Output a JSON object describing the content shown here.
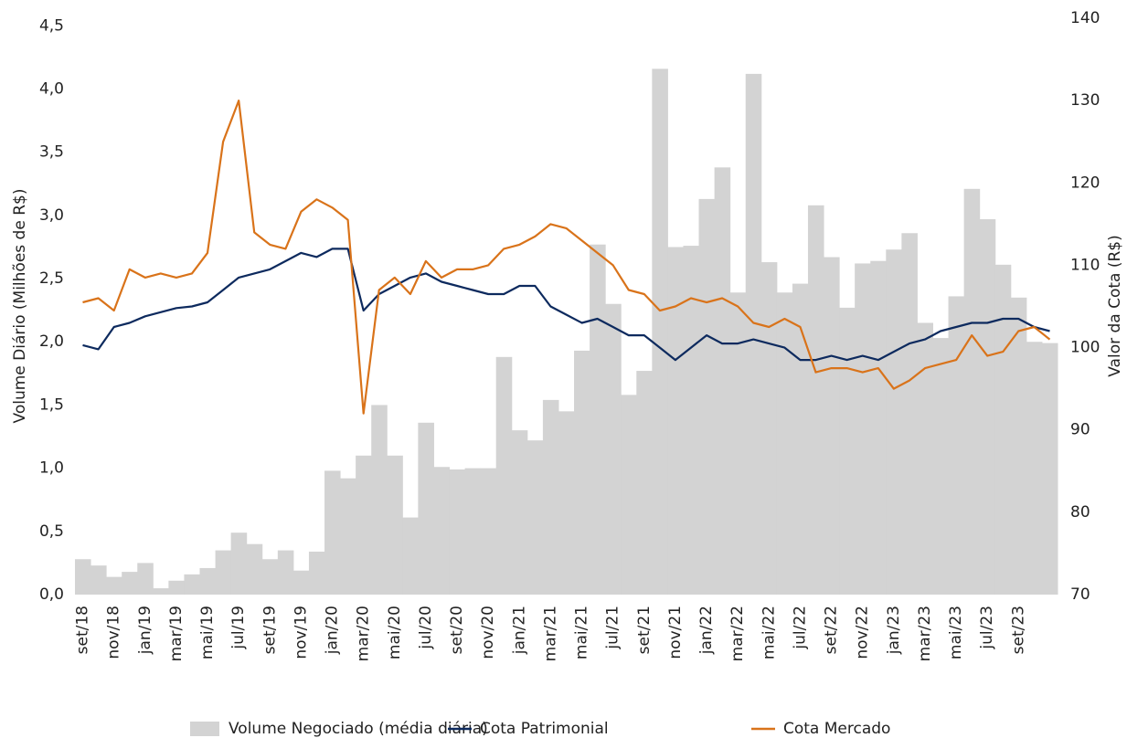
{
  "chart_data": {
    "type": "bar-line",
    "y_label": "Volume Diário (Milhões de R$)",
    "y2_label": "Valor da Cota (R$)",
    "categories": [
      "set/18",
      null,
      "nov/18",
      null,
      "jan/19",
      null,
      "mar/19",
      null,
      "mai/19",
      null,
      "jul/19",
      null,
      "set/19",
      null,
      "nov/19",
      null,
      "jan/20",
      null,
      "mar/20",
      null,
      "mai/20",
      null,
      "jul/20",
      null,
      "set/20",
      null,
      "nov/20",
      null,
      "jan/21",
      null,
      "mar/21",
      null,
      "mai/21",
      null,
      "jul/21",
      null,
      "set/21",
      null,
      "nov/21",
      null,
      "jan/22",
      null,
      "mar/22",
      null,
      "mai/22",
      null,
      "jul/22",
      null,
      "set/22",
      null,
      "nov/22",
      null,
      "jan/23",
      null,
      "mar/23",
      null,
      "mai/23",
      null,
      "jul/23",
      null,
      "set/23",
      null,
      null
    ],
    "series": [
      {
        "name": "Volume Negociado (média diária)",
        "type": "bar",
        "axis": "y",
        "color": "#d3d3d3",
        "values": [
          0.28,
          0.23,
          0.14,
          0.18,
          0.25,
          0.05,
          0.11,
          0.16,
          0.21,
          0.35,
          0.49,
          0.4,
          0.28,
          0.35,
          0.19,
          0.34,
          0.98,
          0.92,
          1.1,
          1.5,
          1.1,
          0.61,
          1.36,
          1.01,
          0.99,
          1.0,
          1.0,
          1.88,
          1.3,
          1.22,
          1.54,
          1.45,
          1.93,
          2.77,
          2.3,
          1.58,
          1.77,
          4.16,
          2.75,
          2.76,
          3.13,
          3.38,
          2.39,
          4.12,
          2.63,
          2.39,
          2.46,
          3.08,
          2.67,
          2.27,
          2.62,
          2.64,
          2.73,
          2.86,
          2.15,
          2.03,
          2.36,
          3.21,
          2.97,
          2.61,
          2.35,
          2.0,
          1.99
        ]
      },
      {
        "name": "Cota Patrimonial",
        "type": "line",
        "axis": "y2",
        "color": "#0d2a5e",
        "values": [
          100.3,
          99.8,
          102.5,
          103.0,
          103.8,
          104.3,
          104.8,
          105.0,
          105.5,
          107.0,
          108.5,
          109.0,
          109.5,
          110.5,
          111.5,
          111.0,
          112.0,
          112.0,
          104.5,
          106.5,
          107.5,
          108.5,
          109.0,
          108.0,
          107.5,
          107.0,
          106.5,
          106.5,
          107.5,
          107.5,
          105.0,
          104.0,
          103.0,
          103.5,
          102.5,
          101.5,
          101.5,
          100.0,
          98.5,
          100.0,
          101.5,
          100.5,
          100.5,
          101.0,
          100.5,
          100.0,
          98.5,
          98.5,
          99.0,
          98.5,
          99.0,
          98.5,
          99.5,
          100.5,
          101.0,
          102.0,
          102.5,
          103.0,
          103.0,
          103.5,
          103.5,
          102.5,
          102.0
        ]
      },
      {
        "name": "Cota Mercado",
        "type": "line",
        "axis": "y2",
        "color": "#d9731a",
        "values": [
          105.5,
          106.0,
          104.5,
          109.5,
          108.5,
          109.0,
          108.5,
          109.0,
          111.5,
          125.0,
          130.0,
          114.0,
          112.5,
          112.0,
          116.5,
          118.0,
          117.0,
          115.5,
          92.0,
          107.0,
          108.5,
          106.5,
          110.5,
          108.5,
          109.5,
          109.5,
          110.0,
          112.0,
          112.5,
          113.5,
          115.0,
          114.5,
          113.0,
          111.5,
          110.0,
          107.0,
          106.5,
          104.5,
          105.0,
          106.0,
          105.5,
          106.0,
          105.0,
          103.0,
          102.5,
          103.5,
          102.5,
          97.0,
          97.5,
          97.5,
          97.0,
          97.5,
          95.0,
          96.0,
          97.5,
          98.0,
          98.5,
          101.5,
          99.0,
          99.5,
          102.0,
          102.5,
          101.0
        ]
      }
    ],
    "ylim": [
      0,
      4.56
    ],
    "yticks": [
      {
        "value": 0,
        "label": "0,0"
      },
      {
        "value": 0.5,
        "label": "0,5"
      },
      {
        "value": 1,
        "label": "1,0"
      },
      {
        "value": 1.5,
        "label": "1,5"
      },
      {
        "value": 2,
        "label": "2,0"
      },
      {
        "value": 2.5,
        "label": "2,5"
      },
      {
        "value": 3,
        "label": "3,0"
      },
      {
        "value": 3.5,
        "label": "3,5"
      },
      {
        "value": 4,
        "label": "4,0"
      },
      {
        "value": 4.5,
        "label": "4,5"
      }
    ],
    "y2lim": [
      70,
      140
    ],
    "y2ticks": [
      70,
      80,
      90,
      100,
      110,
      120,
      130,
      140
    ],
    "grid": false,
    "legend": "bottom"
  }
}
